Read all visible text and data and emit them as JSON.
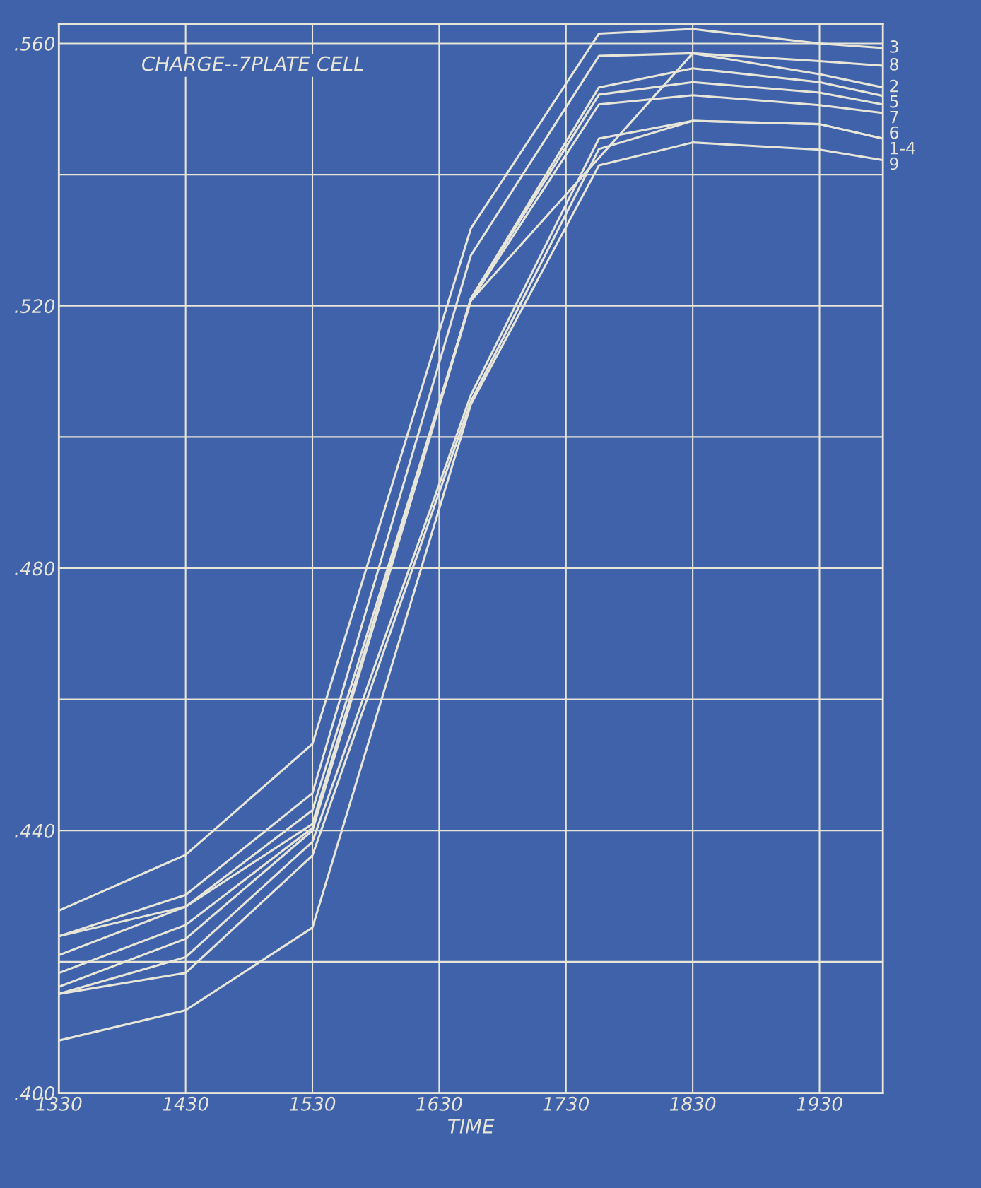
{
  "chart_data": {
    "type": "line",
    "title": "CHARGE--7PLATE CELL",
    "xlabel": "TIME",
    "x": [
      1330,
      1430,
      1530,
      1655,
      1756,
      1830,
      1930,
      1980
    ],
    "series": [
      {
        "name": "3",
        "color": "#e8e6d8",
        "values": [
          0.4278,
          0.4363,
          0.4532,
          0.5318,
          0.5615,
          0.5622,
          0.56,
          0.5593
        ]
      },
      {
        "name": "8",
        "color": "#e8e6d8",
        "values": [
          0.4239,
          0.4302,
          0.4457,
          0.5277,
          0.5581,
          0.5585,
          0.5573,
          0.5566
        ]
      },
      {
        "name": "2",
        "color": "#e8e6d8",
        "x": [
          1330,
          1430,
          1530,
          1655,
          1830,
          1930,
          1980
        ],
        "values": [
          0.4239,
          0.4284,
          0.4431,
          0.5208,
          0.5585,
          0.5553,
          0.5533
        ]
      },
      {
        "name": "5",
        "color": "#e8e6d8",
        "values": [
          0.421,
          0.4284,
          0.441,
          0.5211,
          0.5533,
          0.5562,
          0.5541,
          0.552
        ]
      },
      {
        "name": "7",
        "color": "#e8e6d8",
        "values": [
          0.4183,
          0.4256,
          0.4404,
          0.5211,
          0.5522,
          0.5541,
          0.5525,
          0.5507
        ]
      },
      {
        "name": "6",
        "color": "#e8e6d8",
        "values": [
          0.4162,
          0.4235,
          0.44,
          0.5208,
          0.5507,
          0.5521,
          0.5506,
          0.5494
        ]
      },
      {
        "name": "1-4",
        "color": "#e8e6d8",
        "values": [
          0.4151,
          0.4207,
          0.4383,
          0.5064,
          0.5455,
          0.5482,
          0.5477,
          0.5455
        ]
      },
      {
        "color": "#e8e6d8",
        "values": [
          0.4151,
          0.4183,
          0.4362,
          0.5054,
          0.5439,
          0.5482,
          0.5477,
          0.5455
        ]
      },
      {
        "name": "9",
        "color": "#e8e6d8",
        "values": [
          0.408,
          0.4126,
          0.4252,
          0.505,
          0.5414,
          0.5449,
          0.5438,
          0.5422
        ]
      }
    ],
    "xlim": [
      1330,
      1980
    ],
    "ylim": [
      0.4,
      0.563
    ],
    "xticks": [
      1330,
      1430,
      1530,
      1630,
      1730,
      1830,
      1930
    ],
    "yticks": [
      {
        "value": 0.4,
        "label": ".400"
      },
      {
        "value": 0.42,
        "label": null
      },
      {
        "value": 0.44,
        "label": ".440"
      },
      {
        "value": 0.46,
        "label": null
      },
      {
        "value": 0.48,
        "label": ".480"
      },
      {
        "value": 0.5,
        "label": null
      },
      {
        "value": 0.52,
        "label": ".520"
      },
      {
        "value": 0.54,
        "label": null
      },
      {
        "value": 0.56,
        "label": ".560"
      }
    ],
    "grid": true,
    "legend": false,
    "marker": "none",
    "line_style": "solid"
  }
}
